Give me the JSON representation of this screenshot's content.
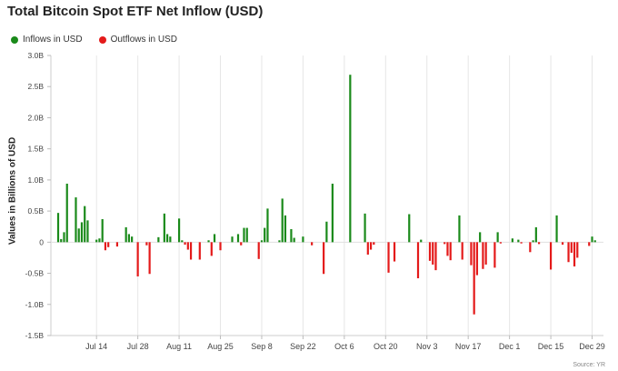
{
  "title": "Total Bitcoin Spot ETF Net Inflow (USD)",
  "legend": {
    "inflows": {
      "label": "Inflows in USD",
      "color": "#1a8a1a"
    },
    "outflows": {
      "label": "Outflows in USD",
      "color": "#e41a1a"
    }
  },
  "source": "Source: YR",
  "chart_data": {
    "type": "bar",
    "title": "Total Bitcoin Spot ETF Net Inflow (USD)",
    "ylabel": "Values in Billions of USD",
    "xlabel": "",
    "ylim": [
      -1.5,
      3.0
    ],
    "yticks": [
      3.0,
      2.5,
      2.0,
      1.5,
      1.0,
      0.5,
      0,
      -0.5,
      -1.0,
      -1.5
    ],
    "ytick_labels": [
      "3.0B",
      "2.5B",
      "2.0B",
      "1.5B",
      "1.0B",
      "0.5B",
      "0",
      "-0.5B",
      "-1.0B",
      "-1.5B"
    ],
    "x_start": "2025-07-01",
    "x_end": "2025-12-31",
    "xtick_labels": [
      {
        "date": "2025-07-14",
        "label": "Jul 14"
      },
      {
        "date": "2025-07-28",
        "label": "Jul 28"
      },
      {
        "date": "2025-08-11",
        "label": "Aug 11"
      },
      {
        "date": "2025-08-25",
        "label": "Aug 25"
      },
      {
        "date": "2025-09-08",
        "label": "Sep 8"
      },
      {
        "date": "2025-09-22",
        "label": "Sep 22"
      },
      {
        "date": "2025-10-06",
        "label": "Oct 6"
      },
      {
        "date": "2025-10-20",
        "label": "Oct 20"
      },
      {
        "date": "2025-11-03",
        "label": "Nov 3"
      },
      {
        "date": "2025-11-17",
        "label": "Nov 17"
      },
      {
        "date": "2025-12-01",
        "label": "Dec 1"
      },
      {
        "date": "2025-12-15",
        "label": "Dec 15"
      },
      {
        "date": "2025-12-29",
        "label": "Dec 29"
      }
    ],
    "grid": {
      "vertical": true,
      "horizontal": false
    },
    "legend_position": "top-left",
    "series": [
      {
        "name": "Inflows in USD",
        "color": "#1a8a1a"
      },
      {
        "name": "Outflows in USD",
        "color": "#e41a1a"
      }
    ],
    "points": [
      {
        "date": "2025-07-01",
        "value": 0.47
      },
      {
        "date": "2025-07-02",
        "value": 0.05
      },
      {
        "date": "2025-07-03",
        "value": 0.16
      },
      {
        "date": "2025-07-04",
        "value": 0.94
      },
      {
        "date": "2025-07-07",
        "value": 0.72
      },
      {
        "date": "2025-07-08",
        "value": 0.22
      },
      {
        "date": "2025-07-09",
        "value": 0.32
      },
      {
        "date": "2025-07-10",
        "value": 0.58
      },
      {
        "date": "2025-07-11",
        "value": 0.35
      },
      {
        "date": "2025-07-14",
        "value": 0.04
      },
      {
        "date": "2025-07-15",
        "value": 0.06
      },
      {
        "date": "2025-07-16",
        "value": 0.37
      },
      {
        "date": "2025-07-17",
        "value": -0.13
      },
      {
        "date": "2025-07-18",
        "value": -0.08
      },
      {
        "date": "2025-07-21",
        "value": -0.07
      },
      {
        "date": "2025-07-24",
        "value": 0.24
      },
      {
        "date": "2025-07-25",
        "value": 0.13
      },
      {
        "date": "2025-07-26",
        "value": 0.09
      },
      {
        "date": "2025-07-28",
        "value": -0.55
      },
      {
        "date": "2025-07-31",
        "value": -0.05
      },
      {
        "date": "2025-08-01",
        "value": -0.51
      },
      {
        "date": "2025-08-04",
        "value": 0.08
      },
      {
        "date": "2025-08-06",
        "value": 0.46
      },
      {
        "date": "2025-08-07",
        "value": 0.13
      },
      {
        "date": "2025-08-08",
        "value": 0.09
      },
      {
        "date": "2025-08-11",
        "value": 0.38
      },
      {
        "date": "2025-08-12",
        "value": 0.03
      },
      {
        "date": "2025-08-13",
        "value": -0.04
      },
      {
        "date": "2025-08-14",
        "value": -0.12
      },
      {
        "date": "2025-08-15",
        "value": -0.28
      },
      {
        "date": "2025-08-18",
        "value": -0.28
      },
      {
        "date": "2025-08-21",
        "value": 0.03
      },
      {
        "date": "2025-08-22",
        "value": -0.22
      },
      {
        "date": "2025-08-23",
        "value": 0.13
      },
      {
        "date": "2025-08-25",
        "value": -0.13
      },
      {
        "date": "2025-08-29",
        "value": 0.09
      },
      {
        "date": "2025-08-31",
        "value": 0.13
      },
      {
        "date": "2025-09-01",
        "value": -0.05
      },
      {
        "date": "2025-09-02",
        "value": 0.23
      },
      {
        "date": "2025-09-03",
        "value": 0.23
      },
      {
        "date": "2025-09-07",
        "value": -0.27
      },
      {
        "date": "2025-09-08",
        "value": 0.03
      },
      {
        "date": "2025-09-09",
        "value": 0.23
      },
      {
        "date": "2025-09-10",
        "value": 0.54
      },
      {
        "date": "2025-09-14",
        "value": 0.03
      },
      {
        "date": "2025-09-15",
        "value": 0.7
      },
      {
        "date": "2025-09-16",
        "value": 0.43
      },
      {
        "date": "2025-09-18",
        "value": 0.21
      },
      {
        "date": "2025-09-19",
        "value": 0.07
      },
      {
        "date": "2025-09-22",
        "value": 0.09
      },
      {
        "date": "2025-09-25",
        "value": -0.05
      },
      {
        "date": "2025-09-29",
        "value": -0.51
      },
      {
        "date": "2025-09-30",
        "value": 0.33
      },
      {
        "date": "2025-10-02",
        "value": 0.94
      },
      {
        "date": "2025-10-08",
        "value": 2.69
      },
      {
        "date": "2025-10-13",
        "value": 0.46
      },
      {
        "date": "2025-10-14",
        "value": -0.2
      },
      {
        "date": "2025-10-15",
        "value": -0.12
      },
      {
        "date": "2025-10-16",
        "value": -0.04
      },
      {
        "date": "2025-10-21",
        "value": -0.49
      },
      {
        "date": "2025-10-23",
        "value": -0.31
      },
      {
        "date": "2025-10-28",
        "value": 0.45
      },
      {
        "date": "2025-10-31",
        "value": -0.58
      },
      {
        "date": "2025-11-01",
        "value": 0.04
      },
      {
        "date": "2025-11-04",
        "value": -0.3
      },
      {
        "date": "2025-11-05",
        "value": -0.36
      },
      {
        "date": "2025-11-06",
        "value": -0.45
      },
      {
        "date": "2025-11-09",
        "value": -0.03
      },
      {
        "date": "2025-11-10",
        "value": -0.22
      },
      {
        "date": "2025-11-11",
        "value": -0.29
      },
      {
        "date": "2025-11-14",
        "value": 0.43
      },
      {
        "date": "2025-11-15",
        "value": -0.28
      },
      {
        "date": "2025-11-18",
        "value": -0.37
      },
      {
        "date": "2025-11-19",
        "value": -1.16
      },
      {
        "date": "2025-11-20",
        "value": -0.53
      },
      {
        "date": "2025-11-21",
        "value": 0.16
      },
      {
        "date": "2025-11-22",
        "value": -0.43
      },
      {
        "date": "2025-11-23",
        "value": -0.36
      },
      {
        "date": "2025-11-26",
        "value": -0.41
      },
      {
        "date": "2025-11-27",
        "value": 0.16
      },
      {
        "date": "2025-11-28",
        "value": -0.02
      },
      {
        "date": "2025-12-02",
        "value": 0.06
      },
      {
        "date": "2025-12-04",
        "value": 0.04
      },
      {
        "date": "2025-12-05",
        "value": -0.02
      },
      {
        "date": "2025-12-08",
        "value": -0.16
      },
      {
        "date": "2025-12-09",
        "value": 0.03
      },
      {
        "date": "2025-12-10",
        "value": 0.24
      },
      {
        "date": "2025-12-11",
        "value": -0.03
      },
      {
        "date": "2025-12-15",
        "value": -0.44
      },
      {
        "date": "2025-12-17",
        "value": 0.43
      },
      {
        "date": "2025-12-19",
        "value": -0.04
      },
      {
        "date": "2025-12-21",
        "value": -0.32
      },
      {
        "date": "2025-12-22",
        "value": -0.17
      },
      {
        "date": "2025-12-23",
        "value": -0.39
      },
      {
        "date": "2025-12-24",
        "value": -0.25
      },
      {
        "date": "2025-12-28",
        "value": -0.06
      },
      {
        "date": "2025-12-29",
        "value": 0.09
      },
      {
        "date": "2025-12-30",
        "value": 0.03
      }
    ]
  }
}
